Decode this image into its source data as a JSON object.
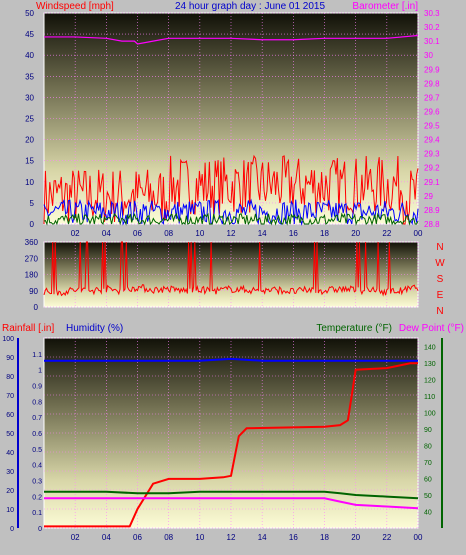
{
  "header": {
    "wind_label": "Windspeed [mph]",
    "title": "24 hour graph day : June 01 2015",
    "baro_label": "Barometer [.in]"
  },
  "footer_labels": {
    "rain_label": "Rainfall [.in]",
    "humidity_label": "Humidity (%)",
    "temp_label": "Temperature (°F)",
    "dew_label": "Dew Point (°F)"
  },
  "colors": {
    "wind": "#ff0000",
    "gust_mid": "#0000ff",
    "avg": "#006400",
    "barometer": "#ff00ff",
    "rain": "#ff0000",
    "humidity": "#0000ff",
    "temperature": "#006400",
    "dewpoint": "#ff00ff"
  },
  "chart_data": [
    {
      "type": "line",
      "title": "24 hour graph day : June 01 2015",
      "x_ticks": [
        "02",
        "04",
        "06",
        "08",
        "10",
        "12",
        "14",
        "16",
        "18",
        "20",
        "22",
        "00"
      ],
      "y_left": {
        "label": "Windspeed [mph]",
        "range": [
          0,
          50
        ],
        "ticks": [
          0,
          5,
          10,
          15,
          20,
          25,
          30,
          35,
          40,
          45,
          50
        ]
      },
      "y_right": {
        "label": "Barometer [.in]",
        "range": [
          28.8,
          30.3
        ],
        "ticks": [
          "28.8",
          "28.9",
          "29",
          "29.1",
          "29.2",
          "29.3",
          "29.4",
          "29.5",
          "29.6",
          "29.7",
          "29.8",
          "29.9",
          "30",
          "30.1",
          "30.2",
          "30.3"
        ]
      },
      "series": [
        {
          "name": "Windspeed [mph]",
          "axis": "left",
          "style": "noise",
          "base": 6,
          "amp": 7
        },
        {
          "name": "",
          "axis": "left",
          "style": "noise",
          "base": 2.5,
          "amp": 3
        },
        {
          "name": "",
          "axis": "left",
          "style": "noise",
          "base": 0.8,
          "amp": 1.5
        },
        {
          "name": "Barometer [.in]",
          "axis": "right",
          "x": [
            0,
            2,
            4,
            5,
            5.8,
            6,
            7,
            8,
            10,
            12,
            14,
            16,
            18,
            20,
            22,
            24
          ],
          "y": [
            30.13,
            30.13,
            30.12,
            30.1,
            30.1,
            30.08,
            30.1,
            30.12,
            30.12,
            30.12,
            30.11,
            30.11,
            30.12,
            30.12,
            30.12,
            30.14
          ]
        }
      ]
    },
    {
      "type": "line",
      "title": "",
      "x_ticks": [
        "02",
        "04",
        "06",
        "08",
        "10",
        "12",
        "14",
        "16",
        "18",
        "20",
        "22",
        "00"
      ],
      "y_left": {
        "label": "",
        "range": [
          0,
          360
        ],
        "ticks": [
          0,
          90,
          180,
          270,
          360
        ]
      },
      "direction_labels": [
        "N",
        "W",
        "S",
        "E",
        "N"
      ],
      "series": [
        {
          "name": "",
          "x": [
            0,
            1,
            2,
            3,
            4,
            5,
            6,
            7,
            8,
            9,
            10,
            11,
            12,
            13,
            14,
            15,
            16,
            17,
            18,
            19,
            20,
            21,
            22,
            23,
            24
          ],
          "y": [
            85,
            80,
            95,
            90,
            100,
            90,
            110,
            95,
            100,
            90,
            95,
            90,
            100,
            95,
            90,
            95,
            85,
            95,
            90,
            100,
            95,
            90,
            85,
            90,
            110
          ]
        }
      ]
    },
    {
      "type": "line",
      "title": "",
      "x_ticks": [
        "02",
        "04",
        "06",
        "08",
        "10",
        "12",
        "14",
        "16",
        "18",
        "20",
        "22",
        "00"
      ],
      "y_left_outer": {
        "label": "Rainfall [.in]",
        "range": [
          0,
          1.2
        ],
        "ticks": [
          "0",
          "0.1",
          "0.2",
          "0.3",
          "0.4",
          "0.5",
          "0.6",
          "0.7",
          "0.8",
          "0.9",
          "1",
          "1.1"
        ]
      },
      "y_left_inner": {
        "label": "Humidity (%)",
        "range": [
          0,
          100
        ],
        "ticks": [
          0,
          10,
          20,
          30,
          40,
          50,
          60,
          70,
          80,
          90,
          100
        ]
      },
      "y_right": {
        "label": "Temperature (°F)",
        "range": [
          30,
          145
        ],
        "ticks": [
          40,
          50,
          60,
          70,
          80,
          90,
          100,
          110,
          120,
          130,
          140
        ]
      },
      "series": [
        {
          "name": "Rainfall [.in]",
          "axis": "outer",
          "x": [
            0,
            5,
            5.5,
            6,
            7,
            8,
            10,
            11.5,
            12,
            12.5,
            13,
            18,
            19,
            19.5,
            20,
            22,
            23.5,
            24
          ],
          "y": [
            0.01,
            0.01,
            0.01,
            0.12,
            0.28,
            0.31,
            0.31,
            0.32,
            0.33,
            0.58,
            0.63,
            0.64,
            0.65,
            0.68,
            1.0,
            1.01,
            1.04,
            1.04
          ]
        },
        {
          "name": "Humidity (%)",
          "axis": "inner",
          "x": [
            0,
            2,
            4,
            6,
            8,
            10,
            12,
            14,
            16,
            18,
            20,
            22,
            24
          ],
          "y": [
            88,
            88,
            88,
            88,
            88,
            88,
            89,
            88,
            88,
            88,
            88,
            88,
            88
          ]
        },
        {
          "name": "Temperature (°F)",
          "axis": "right",
          "x": [
            0,
            2,
            4,
            6,
            8,
            10,
            12,
            14,
            16,
            18,
            19,
            20,
            22,
            24
          ],
          "y": [
            52,
            52,
            52,
            51,
            51,
            52,
            52,
            52,
            52,
            52,
            51,
            50,
            49,
            48
          ]
        },
        {
          "name": "Dew Point (°F)",
          "axis": "right",
          "x": [
            0,
            2,
            4,
            6,
            8,
            10,
            12,
            14,
            16,
            18,
            19,
            20,
            22,
            24
          ],
          "y": [
            48,
            48,
            48,
            48,
            48,
            48,
            48,
            48,
            48,
            48,
            46,
            44,
            43,
            42
          ]
        }
      ]
    }
  ]
}
